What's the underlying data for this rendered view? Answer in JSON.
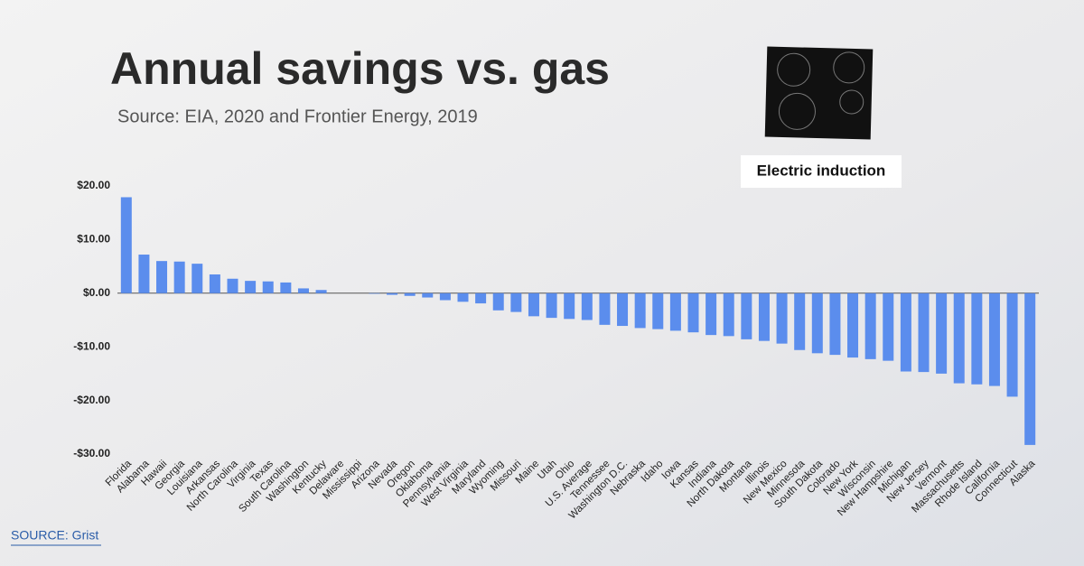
{
  "chart_data": {
    "type": "bar",
    "title": "Annual savings vs. gas",
    "subtitle": "Source: EIA, 2020 and Frontier Energy, 2019",
    "image_caption": "Electric induction",
    "footer_source": "SOURCE: Grist",
    "categories": [
      "Florida",
      "Alabama",
      "Hawaii",
      "Georgia",
      "Louisiana",
      "Arkansas",
      "North Carolina",
      "Virginia",
      "Texas",
      "South Carolina",
      "Washington",
      "Kentucky",
      "Delaware",
      "Mississippi",
      "Arizona",
      "Nevada",
      "Oregon",
      "Oklahoma",
      "Pennsylvania",
      "West Virginia",
      "Maryland",
      "Wyoming",
      "Missouri",
      "Maine",
      "Utah",
      "Ohio",
      "U.S. Average",
      "Tennessee",
      "Washington D.C.",
      "Nebraska",
      "Idaho",
      "Iowa",
      "Kansas",
      "Indiana",
      "North Dakota",
      "Montana",
      "Illinois",
      "New Mexico",
      "Minnesota",
      "South Dakota",
      "Colorado",
      "New York",
      "Wisconsin",
      "New Hampshire",
      "Michigan",
      "New Jersey",
      "Vermont",
      "Massachusetts",
      "Rhode Island",
      "California",
      "Connecticut",
      "Alaska"
    ],
    "values": [
      17.9,
      7.2,
      6.0,
      5.9,
      5.5,
      3.5,
      2.7,
      2.3,
      2.2,
      2.0,
      0.9,
      0.6,
      0,
      0,
      -0.1,
      -0.3,
      -0.5,
      -0.8,
      -1.3,
      -1.6,
      -1.9,
      -3.2,
      -3.5,
      -4.3,
      -4.6,
      -4.8,
      -5.0,
      -5.9,
      -6.1,
      -6.5,
      -6.7,
      -7.0,
      -7.3,
      -7.8,
      -8.0,
      -8.6,
      -8.9,
      -9.4,
      -10.6,
      -11.2,
      -11.5,
      -12.0,
      -12.3,
      -12.6,
      -14.6,
      -14.7,
      -15.0,
      -16.8,
      -17.0,
      -17.3,
      -19.3,
      -28.3
    ],
    "color": "#5b8ded",
    "ylim": [
      -30,
      20
    ],
    "yticks": [
      {
        "value": 20,
        "label": "$20.00"
      },
      {
        "value": 10,
        "label": "$10.00"
      },
      {
        "value": 0,
        "label": "$0.00"
      },
      {
        "value": -10,
        "label": "-$10.00"
      },
      {
        "value": -20,
        "label": "-$20.00"
      },
      {
        "value": -30,
        "label": "-$30.00"
      }
    ],
    "grid": false
  }
}
